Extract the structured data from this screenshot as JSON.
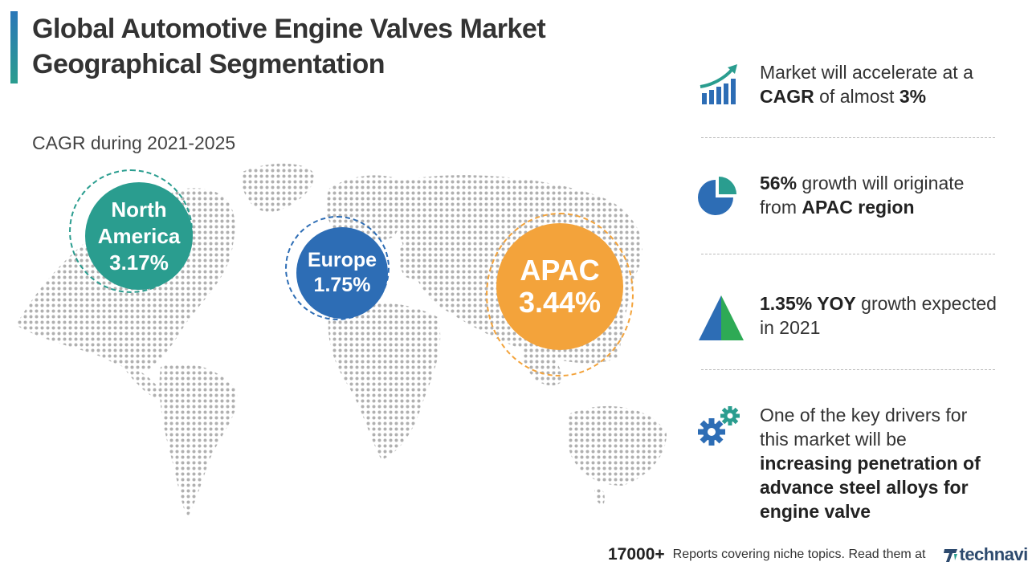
{
  "header": {
    "title_line1": "Global Automotive Engine Valves Market",
    "title_line2": "Geographical Segmentation",
    "subtitle": "CAGR during 2021-2025"
  },
  "regions": [
    {
      "name_line1": "North",
      "name_line2": "America",
      "cagr": "3.17%",
      "color": "#2a9d8f"
    },
    {
      "name": "Europe",
      "cagr": "1.75%",
      "color": "#2d6db5"
    },
    {
      "name": "APAC",
      "cagr": "3.44%",
      "color": "#f3a33b"
    }
  ],
  "highlights": {
    "h1": {
      "icon": "growth-chart-icon",
      "p1": "Market will accelerate at a ",
      "b1": "CAGR",
      "p2": " of almost ",
      "b2": "3%"
    },
    "h2": {
      "icon": "pie-chart-icon",
      "b1": "56%",
      "p1": " growth will originate from ",
      "b2": "APAC region"
    },
    "h3": {
      "icon": "triangle-icon",
      "b1": "1.35% YOY",
      "p1": " growth expected in 2021"
    },
    "h4": {
      "icon": "gears-icon",
      "p1": "One of the key drivers for this market will be ",
      "b1": "increasing penetration of advance steel alloys for engine valve"
    }
  },
  "footer": {
    "count": "17000",
    "plus": "+",
    "text": "Reports covering niche topics. Read them at",
    "brand": "technavio"
  },
  "colors": {
    "teal": "#2a9d8f",
    "blue": "#2d6db5",
    "orange": "#f3a33b",
    "map_dot": "#b0b0b0"
  }
}
